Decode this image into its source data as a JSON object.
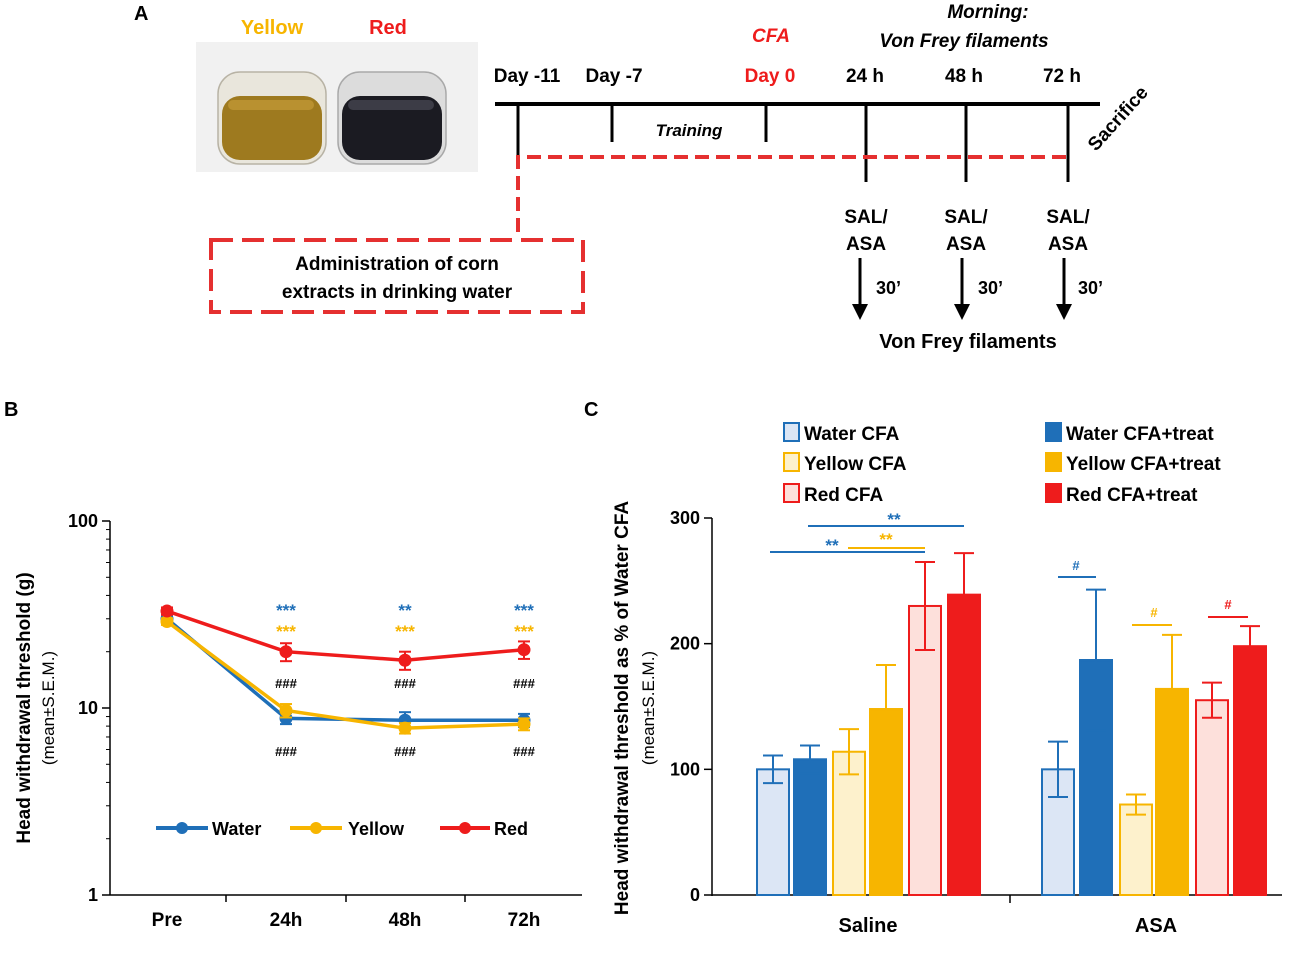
{
  "panel_a": {
    "label": "A",
    "photo": {
      "yellow_label": "Yellow",
      "red_label": "Red"
    },
    "timeline": {
      "days": [
        "Day -11",
        "Day -7",
        "Day 0",
        "24 h",
        "48 h",
        "72 h"
      ],
      "cfa": "CFA",
      "morning_line1": "Morning:",
      "morning_line2": "Von Frey filaments",
      "training": "Training",
      "sacrifice": "Sacrifice",
      "sal_asa_line1": "SAL/",
      "sal_asa_line2": "ASA",
      "delay": "30’",
      "von_frey": "Von Frey filaments",
      "admin_line1": "Administration of corn",
      "admin_line2": "extracts in drinking water"
    }
  },
  "colors": {
    "water": "#1f6fb8",
    "yellow": "#f7b500",
    "red": "#ee1c1c",
    "water_light": "#dce6f5",
    "yellow_light": "#fdf1cc",
    "red_light": "#fde0db",
    "dashed_red": "#e53030"
  },
  "chart_data": [
    {
      "panel": "B",
      "type": "line",
      "yscale": "log",
      "categories": [
        "Pre",
        "24h",
        "48h",
        "72h"
      ],
      "ylabel": "Head withdrawal threshold (g)",
      "ysublabel": "(mean±S.E.M.)",
      "ylim": [
        1,
        100
      ],
      "yticks": [
        "1",
        "10",
        "100"
      ],
      "series": [
        {
          "name": "Water",
          "color": "#1f6fb8",
          "values": [
            30,
            8.8,
            8.6,
            8.6
          ],
          "errors": [
            1.2,
            0.6,
            0.9,
            0.7
          ]
        },
        {
          "name": "Yellow",
          "color": "#f7b500",
          "values": [
            29,
            9.7,
            7.8,
            8.2
          ],
          "errors": [
            1.2,
            0.8,
            0.5,
            0.6
          ]
        },
        {
          "name": "Red",
          "color": "#ee1c1c",
          "values": [
            33,
            20,
            18,
            20.5
          ],
          "errors": [
            1.5,
            2.2,
            2.0,
            2.2
          ]
        }
      ],
      "annotations": {
        "blue_stars": [
          "***",
          "**",
          "***"
        ],
        "yellow_stars": [
          "***",
          "***",
          "***"
        ],
        "hash_upper": [
          "###",
          "###",
          "###"
        ],
        "hash_lower": [
          "###",
          "###",
          "###"
        ]
      }
    },
    {
      "panel": "C",
      "type": "bar",
      "categories": [
        "Saline",
        "ASA"
      ],
      "ylabel": "Head withdrawal threshold as % of Water CFA",
      "ysublabel": "(mean±S.E.M.)",
      "ylim": [
        0,
        300
      ],
      "yticks": [
        "0",
        "100",
        "200",
        "300"
      ],
      "series": [
        {
          "name": "Water CFA",
          "fill": "#dce6f5",
          "stroke": "#1f6fb8",
          "values": [
            100,
            100
          ],
          "errors": [
            11,
            22
          ]
        },
        {
          "name": "Water CFA+treat",
          "fill": "#1f6fb8",
          "stroke": "#1f6fb8",
          "values": [
            108,
            187
          ],
          "errors": [
            11,
            56
          ]
        },
        {
          "name": "Yellow CFA",
          "fill": "#fdf1cc",
          "stroke": "#f7b500",
          "values": [
            114,
            72
          ],
          "errors": [
            18,
            8
          ]
        },
        {
          "name": "Yellow CFA+treat",
          "fill": "#f7b500",
          "stroke": "#f7b500",
          "values": [
            148,
            164
          ],
          "errors": [
            35,
            43
          ]
        },
        {
          "name": "Red CFA",
          "fill": "#fde0db",
          "stroke": "#ee1c1c",
          "values": [
            230,
            155
          ],
          "errors": [
            35,
            14
          ]
        },
        {
          "name": "Red CFA+treat",
          "fill": "#ee1c1c",
          "stroke": "#ee1c1c",
          "values": [
            239,
            198
          ],
          "errors": [
            33,
            16
          ]
        }
      ],
      "sig_labels": {
        "saline_top": "**",
        "saline_left": "**",
        "saline_yellow": "**",
        "asa_water": "#",
        "asa_yellow": "#",
        "asa_red": "#"
      }
    }
  ],
  "panel_b_label": "B",
  "panel_c_label": "C"
}
